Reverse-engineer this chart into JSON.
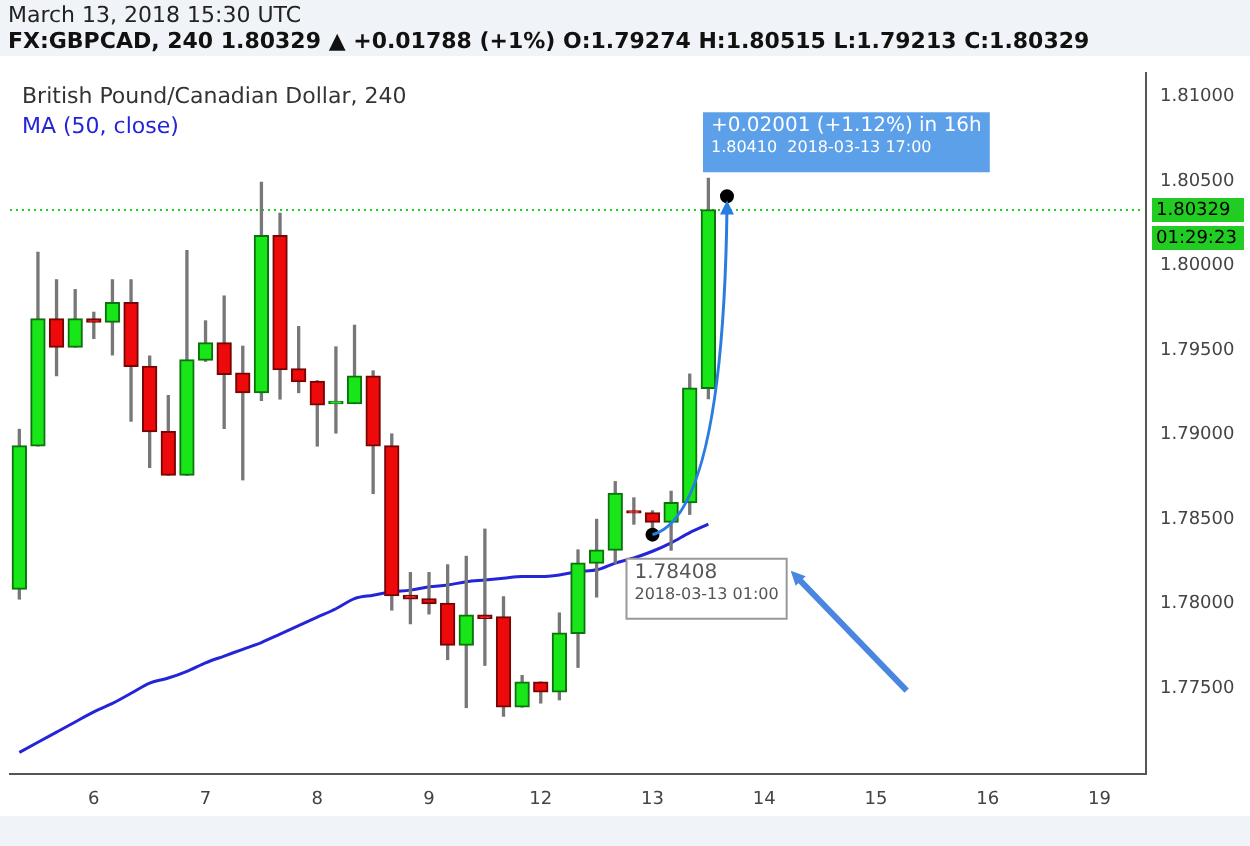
{
  "chart_data": {
    "type": "candlestick",
    "title": "FX:GBPCAD, 240  1.80329 ▲ +0.01788 (+1%) O:1.79274 H:1.80515 L:1.79213 C:1.80329",
    "subtitle": "British Pound/Canadian Dollar, 240",
    "categories": [
      null,
      null,
      null,
      null,
      "6",
      null,
      null,
      null,
      null,
      null,
      "7",
      null,
      null,
      null,
      null,
      null,
      "8",
      null,
      null,
      null,
      null,
      null,
      "9",
      null,
      null,
      null,
      null,
      null,
      "12",
      null,
      null,
      null,
      null,
      null,
      "13",
      null,
      null,
      null,
      null,
      null,
      "14",
      null,
      null,
      null,
      null,
      null,
      "15",
      null,
      null,
      null,
      null,
      null,
      "16",
      null,
      null,
      null,
      null,
      null,
      "19",
      null,
      null
    ],
    "ohlc": [
      [
        1.78086,
        1.7903,
        1.78028,
        1.78933
      ],
      [
        1.78933,
        1.80077,
        1.78933,
        1.79684
      ],
      [
        1.79684,
        1.79915,
        1.79349,
        1.79518
      ],
      [
        1.79518,
        1.79857,
        1.79518,
        1.79684
      ],
      [
        1.79684,
        1.79723,
        1.79569,
        1.79665
      ],
      [
        1.79665,
        1.79915,
        1.79472,
        1.7978
      ],
      [
        1.7978,
        1.79915,
        1.7908,
        1.79403
      ],
      [
        1.79403,
        1.79464,
        1.78806,
        1.79018
      ],
      [
        1.79018,
        1.7923,
        1.7876,
        1.7876
      ],
      [
        1.7876,
        1.80088,
        1.7876,
        1.79441
      ],
      [
        1.79441,
        1.79672,
        1.79434,
        1.79542
      ],
      [
        1.79542,
        1.79819,
        1.79037,
        1.79357
      ],
      [
        1.79364,
        1.79522,
        1.78733,
        1.79249
      ],
      [
        1.79249,
        1.80492,
        1.79203,
        1.80177
      ],
      [
        1.80177,
        1.80308,
        1.79211,
        1.79384
      ],
      [
        1.79388,
        1.79638,
        1.79249,
        1.79314
      ],
      [
        1.79314,
        1.79318,
        1.78933,
        1.79176
      ],
      [
        1.79184,
        1.79518,
        1.7901,
        1.79184
      ],
      [
        1.79184,
        1.79646,
        1.79184,
        1.79345
      ],
      [
        1.79345,
        1.79376,
        1.78652,
        1.78933
      ],
      [
        1.78933,
        1.79003,
        1.77963,
        1.78048
      ],
      [
        1.78048,
        1.78183,
        1.77882,
        1.78028
      ],
      [
        1.78028,
        1.78183,
        1.7794,
        1.78001
      ],
      [
        1.78001,
        1.78229,
        1.7767,
        1.77755
      ],
      [
        1.77755,
        1.78279,
        1.77386,
        1.77932
      ],
      [
        1.77932,
        1.7844,
        1.77636,
        1.77913
      ],
      [
        1.77921,
        1.7804,
        1.77335,
        1.77389
      ],
      [
        1.77389,
        1.77574,
        1.77389,
        1.77536
      ],
      [
        1.77536,
        1.77536,
        1.77413,
        1.77478
      ],
      [
        1.77478,
        1.77944,
        1.77432,
        1.77825
      ],
      [
        1.77825,
        1.78317,
        1.77624,
        1.7824
      ],
      [
        1.7824,
        1.78498,
        1.7804,
        1.78317
      ],
      [
        1.78317,
        1.78721,
        1.7824,
        1.78652
      ],
      [
        1.7854,
        1.78625,
        1.78471,
        1.78537
      ],
      [
        1.78537,
        1.78548,
        1.78406,
        1.78483
      ],
      [
        1.78483,
        1.78664,
        1.78317,
        1.78598
      ],
      [
        1.78598,
        1.79357,
        1.78529,
        1.79274
      ],
      [
        1.79274,
        1.80515,
        1.79213,
        1.80329
      ],
      null,
      null,
      null,
      null,
      null,
      null,
      null,
      null,
      null,
      null,
      null,
      null,
      null,
      null,
      null,
      null,
      null,
      null,
      null,
      null,
      null,
      null,
      null
    ],
    "series": [
      {
        "type": "line",
        "name": "MA (50, close)",
        "color": "#2424d8",
        "values": [
          1.7712,
          1.7718,
          1.7724,
          1.773,
          1.7736,
          1.7741,
          1.7747,
          1.7753,
          1.7756,
          1.776,
          1.7765,
          1.7769,
          1.7773,
          1.7777,
          1.7782,
          1.7787,
          1.7792,
          1.7797,
          1.7803,
          1.7805,
          1.7807,
          1.7808,
          1.781,
          1.7811,
          1.7813,
          1.7814,
          1.7815,
          1.7816,
          1.7816,
          1.7817,
          1.7819,
          1.782,
          1.7824,
          1.7827,
          1.7831,
          1.7836,
          1.7842,
          1.7847,
          null,
          null,
          null,
          null,
          null,
          null,
          null,
          null,
          null,
          null,
          null,
          null,
          null,
          null,
          null,
          null,
          null,
          null,
          null,
          null,
          null,
          null,
          null
        ]
      },
      {
        "type": "scatter",
        "color": "#000000",
        "marker": "circle",
        "values": [
          null,
          null,
          null,
          null,
          null,
          null,
          null,
          null,
          null,
          null,
          null,
          null,
          null,
          null,
          null,
          null,
          null,
          null,
          null,
          null,
          null,
          null,
          null,
          null,
          null,
          null,
          null,
          null,
          null,
          null,
          null,
          null,
          null,
          null,
          1.78408,
          null,
          null,
          null,
          1.8041,
          null,
          null,
          null,
          null,
          null,
          null,
          null,
          null,
          null,
          null,
          null,
          null,
          null,
          null,
          null,
          null,
          null,
          null,
          null,
          null,
          null,
          null
        ]
      }
    ],
    "ylim": [
      1.7699,
      1.8114
    ],
    "yticks": [
      {
        "value": 1.775,
        "label": "1.77500"
      },
      {
        "value": 1.78,
        "label": "1.78000"
      },
      {
        "value": 1.785,
        "label": "1.78500"
      },
      {
        "value": 1.79,
        "label": "1.79000"
      },
      {
        "value": 1.795,
        "label": "1.79500"
      },
      {
        "value": 1.8,
        "label": "1.80000"
      },
      {
        "value": 1.805,
        "label": "1.80500"
      },
      {
        "value": 1.81,
        "label": "1.81000"
      }
    ],
    "ref_lines": [
      {
        "axis": "y",
        "value": 1.80329,
        "label": "1.80329",
        "color": "#22cc22",
        "line_style": "dotted"
      }
    ],
    "annotations": [
      "March 13, 2018 15:30 UTC",
      "01:29:23",
      "+0.02001 (+1.12%) in 16h",
      "1.80410  2018-03-13 17:00",
      "1.78408",
      "2018-03-13 01:00"
    ],
    "legend": "top left",
    "grid": false
  }
}
